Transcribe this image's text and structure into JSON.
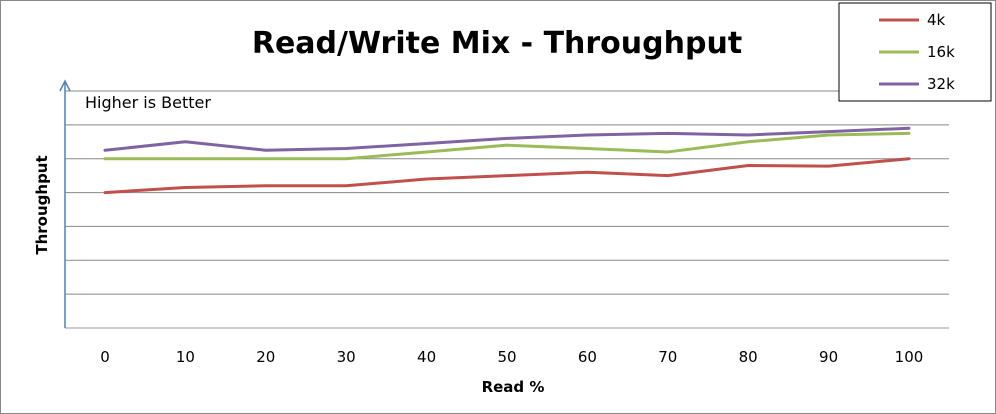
{
  "chart_data": {
    "type": "line",
    "title": "Read/Write Mix - Throughput",
    "xlabel": "Read %",
    "ylabel": "Throughput",
    "annotation": "Higher is Better",
    "x": [
      0,
      10,
      20,
      30,
      40,
      50,
      60,
      70,
      80,
      90,
      100
    ],
    "ylim": [
      0,
      7
    ],
    "y_ticks_labeled": false,
    "grid": true,
    "legend_position": "top-right",
    "series": [
      {
        "name": "4k",
        "color": "#C0504D",
        "values": [
          4.0,
          4.15,
          4.2,
          4.2,
          4.4,
          4.5,
          4.6,
          4.5,
          4.8,
          4.78,
          5.0
        ]
      },
      {
        "name": "16k",
        "color": "#9BBB59",
        "values": [
          5.0,
          5.0,
          5.0,
          5.0,
          5.2,
          5.4,
          5.3,
          5.2,
          5.5,
          5.7,
          5.75
        ]
      },
      {
        "name": "32k",
        "color": "#8064A2",
        "values": [
          5.25,
          5.5,
          5.25,
          5.3,
          5.45,
          5.6,
          5.7,
          5.75,
          5.7,
          5.8,
          5.9
        ]
      }
    ]
  }
}
